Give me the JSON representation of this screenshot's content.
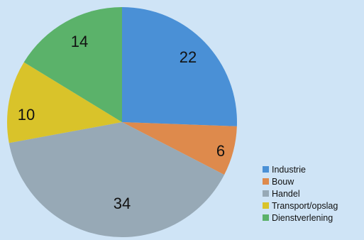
{
  "chart_data": {
    "type": "pie",
    "categories": [
      "Industrie",
      "Bouw",
      "Handel",
      "Transport/opslag",
      "Dienstverlening"
    ],
    "values": [
      22,
      6,
      34,
      10,
      14
    ],
    "colors": [
      "#4a90d6",
      "#de8a4c",
      "#97a9b6",
      "#d9c32a",
      "#5bb26a"
    ],
    "background_color": "#cfe4f6",
    "start_angle": "top (12 o'clock), clockwise",
    "data_labels": [
      "22",
      "6",
      "34",
      "10",
      "14"
    ],
    "legend_position": "bottom-right",
    "title": ""
  }
}
